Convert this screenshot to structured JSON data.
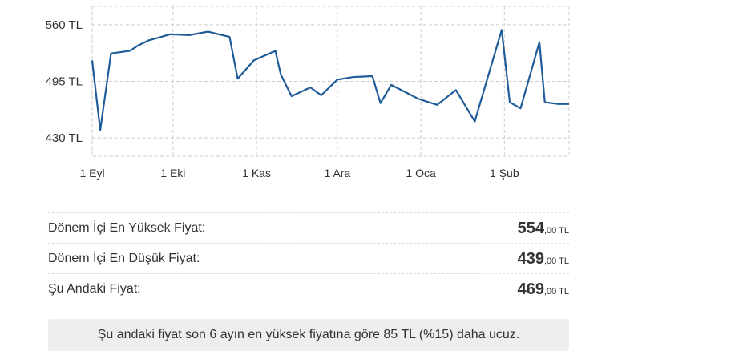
{
  "chart_data": {
    "type": "line",
    "x": [
      0,
      3,
      7,
      14,
      17,
      21,
      29,
      36,
      43,
      51,
      54,
      60,
      68,
      70,
      74,
      81,
      85,
      91,
      97,
      104,
      107,
      111,
      121,
      128,
      135,
      142,
      152,
      155,
      159,
      166,
      168,
      173,
      177
    ],
    "series": [
      {
        "color": "#1f5c99",
        "values": [
          519,
          439,
          527,
          530,
          536,
          542,
          549,
          548,
          552,
          546,
          498,
          519,
          530,
          503,
          478,
          488,
          479,
          497,
          500,
          501,
          470,
          491,
          475,
          468,
          485,
          449,
          554,
          471,
          464,
          540,
          471,
          469,
          469
        ]
      }
    ],
    "xlim": [
      0,
      177
    ],
    "xticks": [
      {
        "value": 0,
        "label": "1 Eyl"
      },
      {
        "value": 30,
        "label": "1 Eki"
      },
      {
        "value": 61,
        "label": "1 Kas"
      },
      {
        "value": 91,
        "label": "1 Ara"
      },
      {
        "value": 122,
        "label": "1 Oca"
      },
      {
        "value": 153,
        "label": "1 Şub"
      }
    ],
    "ylim": [
      409,
      581
    ],
    "yticks": [
      {
        "value": 430,
        "label": "430 TL"
      },
      {
        "value": 495,
        "label": "495 TL"
      },
      {
        "value": 560,
        "label": "560 TL"
      }
    ],
    "grid": true
  },
  "summary": {
    "rows": [
      {
        "label": "Dönem İçi En Yüksek Fiyat:",
        "price": "554",
        "suffix": ",00 TL"
      },
      {
        "label": "Dönem İçi En Düşük Fiyat:",
        "price": "439",
        "suffix": ",00 TL"
      },
      {
        "label": "Şu Andaki Fiyat:",
        "price": "469",
        "suffix": ",00 TL"
      }
    ],
    "note": "Şu andaki fiyat son 6 ayın en yüksek fiyatına göre 85 TL (%15) daha ucuz."
  }
}
